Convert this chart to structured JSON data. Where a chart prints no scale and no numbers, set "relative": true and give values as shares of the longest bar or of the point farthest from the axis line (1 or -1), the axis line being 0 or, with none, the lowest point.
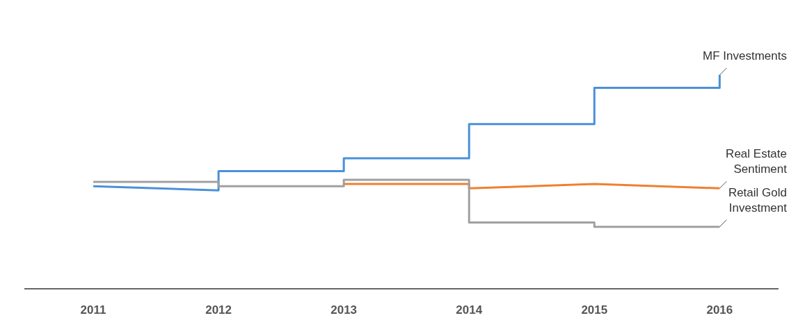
{
  "chart_data": {
    "type": "line",
    "relative": true,
    "legend": false,
    "grid": false,
    "marker": "none",
    "line_style": "solid",
    "xlim": [
      2010.45,
      2016.47
    ],
    "xticks": [
      2011,
      2012,
      2013,
      2014,
      2015,
      2016
    ],
    "series": [
      {
        "name": "MF Investments",
        "color": "#4a90d9",
        "x": [
          2011,
          2012,
          2012,
          2013,
          2013,
          2014,
          2014,
          2015,
          2015,
          2016,
          2016
        ],
        "values": [
          0.48,
          0.46,
          0.55,
          0.55,
          0.61,
          0.61,
          0.77,
          0.77,
          0.94,
          0.94,
          1
        ]
      },
      {
        "name": "Real Estate Sentiment",
        "color": "#f07f2f",
        "x": [
          2013,
          2014,
          2014,
          2015,
          2016
        ],
        "values": [
          0.49,
          0.49,
          0.47,
          0.49,
          0.47
        ]
      },
      {
        "name": "Retail Gold Investment",
        "color": "#a0a0a0",
        "x": [
          2011,
          2012,
          2012,
          2013,
          2013,
          2014,
          2014,
          2015,
          2015,
          2016
        ],
        "values": [
          0.5,
          0.5,
          0.48,
          0.48,
          0.51,
          0.51,
          0.31,
          0.31,
          0.29,
          0.29
        ]
      }
    ]
  }
}
